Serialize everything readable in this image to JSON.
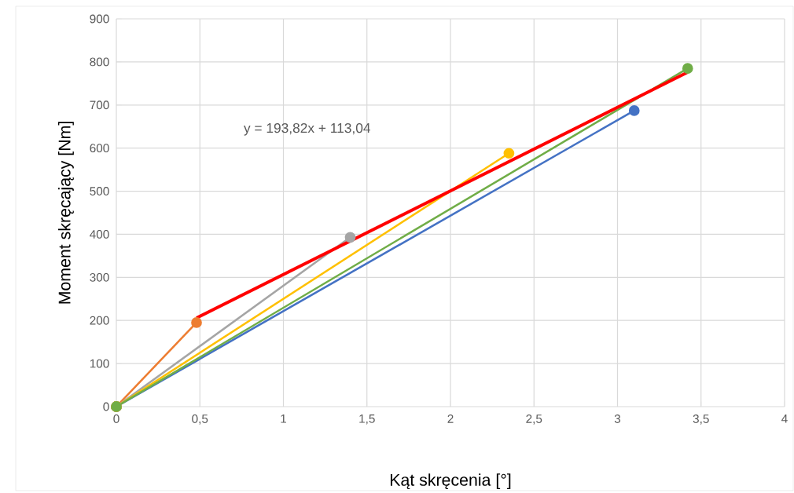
{
  "chart_data": {
    "type": "line",
    "xlabel": "Kąt skręcenia [°]",
    "ylabel": "Moment skręcający [Nm]",
    "annotations": [
      "y = 193,82x + 113,04"
    ],
    "series": [
      {
        "color": "#4472c4",
        "x": [
          0,
          3.1
        ],
        "values": [
          0,
          687
        ]
      },
      {
        "color": "#ed7d31",
        "x": [
          0,
          0.48
        ],
        "values": [
          0,
          195
        ]
      },
      {
        "color": "#a5a5a5",
        "x": [
          0,
          1.4
        ],
        "values": [
          0,
          393
        ]
      },
      {
        "color": "#ffc000",
        "x": [
          0,
          2.35
        ],
        "values": [
          0,
          588
        ]
      },
      {
        "color": "#70ad47",
        "x": [
          0,
          3.42
        ],
        "values": [
          0,
          785
        ]
      },
      {
        "color": "#ff0000",
        "x": [
          0.48,
          3.42
        ],
        "values": [
          206,
          776
        ],
        "marker": "none"
      }
    ],
    "xlim": [
      0,
      4
    ],
    "ylim": [
      0,
      900
    ],
    "xticks": [
      0,
      {
        "value": 0.5,
        "label": "0,5"
      },
      1,
      {
        "value": 1.5,
        "label": "1,5"
      },
      2,
      {
        "value": 2.5,
        "label": "2,5"
      },
      3,
      {
        "value": 3.5,
        "label": "3,5"
      },
      4
    ],
    "yticks": [
      0,
      100,
      200,
      300,
      400,
      500,
      600,
      700,
      800,
      900
    ],
    "grid": true,
    "marker": "circle",
    "line_style": "solid"
  }
}
